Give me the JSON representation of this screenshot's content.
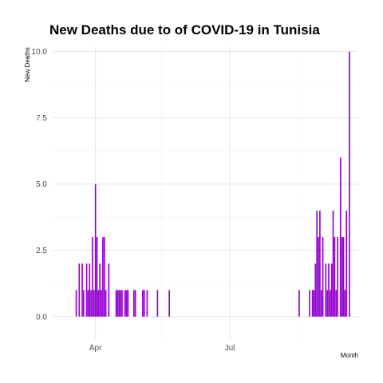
{
  "chart_data": {
    "type": "bar",
    "title": "New Deaths due to of COVID-19 in Tunisia",
    "xlabel": "Month",
    "ylabel": "New Deaths",
    "ylim": [
      -0.85,
      10.2
    ],
    "xlim": [
      "2020-03-03",
      "2020-09-26"
    ],
    "yticks": [
      {
        "value": 0,
        "label": "0.0"
      },
      {
        "value": 2.5,
        "label": "2.5"
      },
      {
        "value": 5,
        "label": "5.0"
      },
      {
        "value": 7.5,
        "label": "7.5"
      },
      {
        "value": 10,
        "label": "10.0"
      }
    ],
    "xticks": [
      {
        "date": "2020-04-01",
        "label": "Apr"
      },
      {
        "date": "2020-07-01",
        "label": "Jul"
      }
    ],
    "x_minor_gridlines": [
      "2020-05-16",
      "2020-08-16"
    ],
    "grid": true,
    "bar_color": "#9400D3",
    "x": [
      "2020-03-19",
      "2020-03-21",
      "2020-03-23",
      "2020-03-24",
      "2020-03-26",
      "2020-03-27",
      "2020-03-28",
      "2020-03-29",
      "2020-03-30",
      "2020-03-31",
      "2020-04-01",
      "2020-04-02",
      "2020-04-03",
      "2020-04-04",
      "2020-04-05",
      "2020-04-06",
      "2020-04-07",
      "2020-04-08",
      "2020-04-10",
      "2020-04-15",
      "2020-04-16",
      "2020-04-17",
      "2020-04-18",
      "2020-04-19",
      "2020-04-21",
      "2020-04-22",
      "2020-04-23",
      "2020-04-27",
      "2020-04-28",
      "2020-05-03",
      "2020-05-04",
      "2020-05-06",
      "2020-05-13",
      "2020-05-21",
      "2020-08-17",
      "2020-08-24",
      "2020-08-26",
      "2020-08-27",
      "2020-08-28",
      "2020-08-29",
      "2020-08-30",
      "2020-08-31",
      "2020-09-01",
      "2020-09-02",
      "2020-09-04",
      "2020-09-05",
      "2020-09-06",
      "2020-09-07",
      "2020-09-08",
      "2020-09-09",
      "2020-09-10",
      "2020-09-11",
      "2020-09-12",
      "2020-09-14",
      "2020-09-15",
      "2020-09-16",
      "2020-09-17",
      "2020-09-18",
      "2020-09-20"
    ],
    "values": [
      1,
      2,
      2,
      1,
      2,
      1,
      2,
      1,
      3,
      1,
      5,
      3,
      1,
      2,
      1,
      3,
      3,
      1,
      2,
      1,
      1,
      1,
      1,
      1,
      1,
      1,
      1,
      1,
      1,
      1,
      1,
      1,
      1,
      1,
      1,
      1,
      1,
      1,
      2,
      4,
      3,
      4,
      1,
      3,
      2,
      1,
      2,
      1,
      2,
      4,
      3,
      1,
      3,
      6,
      3,
      3,
      1,
      4,
      10
    ]
  }
}
